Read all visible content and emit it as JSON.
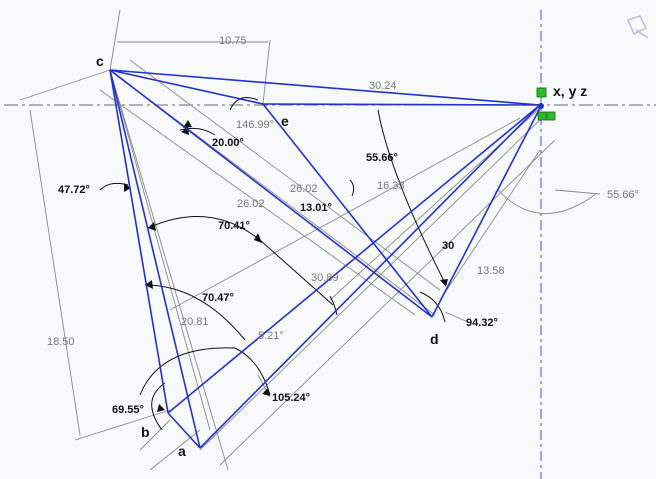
{
  "points": {
    "a": "a",
    "b": "b",
    "c": "c",
    "d": "d",
    "e": "e",
    "origin": "x, y z"
  },
  "dimensions": {
    "d_10_75": "10.75",
    "d_30_24": "30.24",
    "d_146_99": "146.99°",
    "d_20_00": "20.00°",
    "d_55_66_a": "55.66°",
    "d_55_66_b": "55.66°",
    "d_47_72": "47.72°",
    "d_26_02_a": "26.02",
    "d_26_02_b": "26.02",
    "d_16_33": "16.33",
    "d_13_01": "13.01°",
    "d_70_41": "70.41°",
    "d_30": "30",
    "d_13_58": "13.58",
    "d_30_89": "30.89",
    "d_70_47": "70.47°",
    "d_94_32": "94.32°",
    "d_18_50": "18.50",
    "d_20_81": "20.81",
    "d_5_21": "5.21°",
    "d_105_24": "105.24°",
    "d_69_55": "69.55°"
  },
  "colors": {
    "sketch": "#2233cc",
    "dimension": "#8a8a8a",
    "grip": "#2dbb2d"
  }
}
